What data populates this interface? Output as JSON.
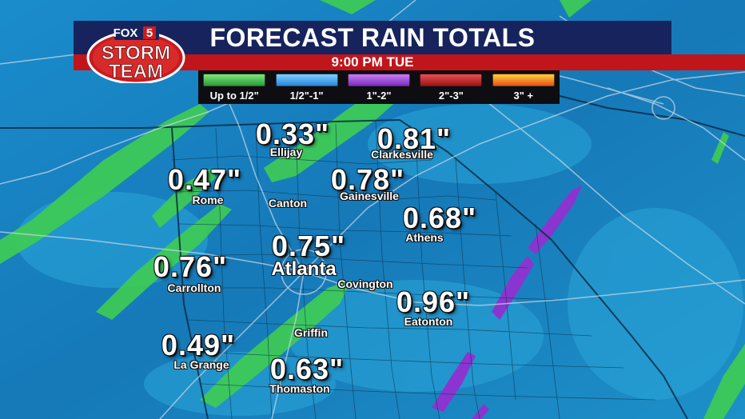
{
  "title": "FORECAST RAIN TOTALS",
  "time": "9:00 PM TUE",
  "logo": {
    "line1": "FOX",
    "digit": "5",
    "line2": "STORM",
    "line3": "TEAM"
  },
  "legend": [
    {
      "label": "Up to 1/2\"",
      "color_top": "#7ee87a",
      "color_bottom": "#2c9a3a"
    },
    {
      "label": "1/2\"-1\"",
      "color_top": "#7fd0ff",
      "color_bottom": "#2a86d8"
    },
    {
      "label": "1\"-2\"",
      "color_top": "#c87df0",
      "color_bottom": "#7a2fbf"
    },
    {
      "label": "2\"-3\"",
      "color_top": "#e85050",
      "color_bottom": "#9c1515"
    },
    {
      "label": "3\" +",
      "color_top": "#ffd23a",
      "color_bottom": "#e8501a"
    }
  ],
  "locations": [
    {
      "amount": "0.33\"",
      "city": "Ellijay"
    },
    {
      "amount": "0.81\"",
      "city": "Clarkesville"
    },
    {
      "amount": "0.47\"",
      "city": "Rome"
    },
    {
      "amount": "",
      "city": "Canton"
    },
    {
      "amount": "0.78\"",
      "city": "Gainesville"
    },
    {
      "amount": "0.68\"",
      "city": "Athens"
    },
    {
      "amount": "0.75\"",
      "city": "Atlanta"
    },
    {
      "amount": "0.76\"",
      "city": "Carrollton"
    },
    {
      "amount": "",
      "city": "Covington"
    },
    {
      "amount": "0.96\"",
      "city": "Eatonton"
    },
    {
      "amount": "",
      "city": "Griffin"
    },
    {
      "amount": "0.49\"",
      "city": "La Grange"
    },
    {
      "amount": "0.63\"",
      "city": "Thomaston"
    }
  ]
}
